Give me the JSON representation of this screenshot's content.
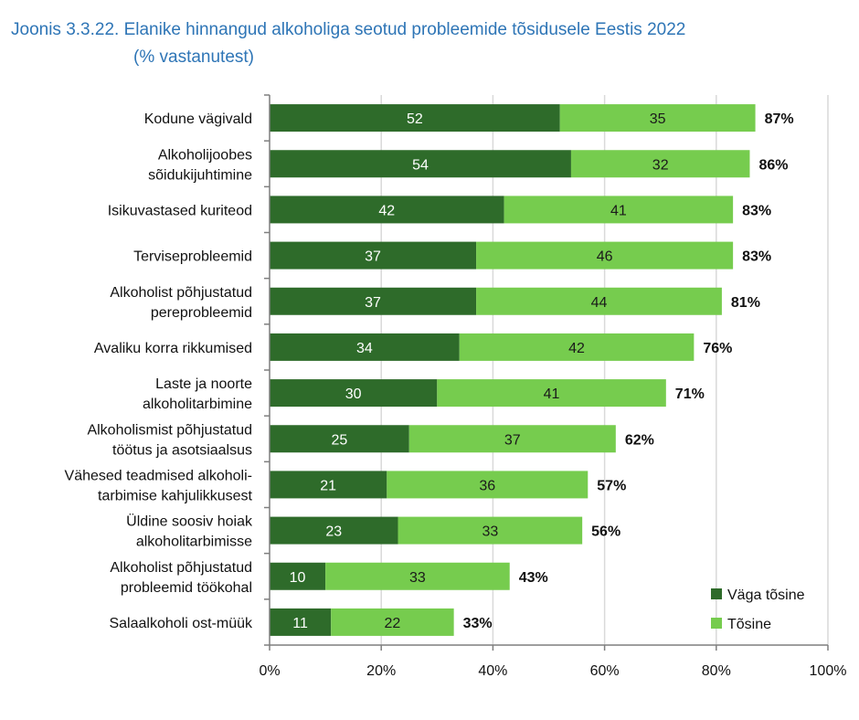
{
  "title": {
    "line1": "Joonis 3.3.22. Elanike hinnangud alkoholiga seotud probleemide tõsidusele Eestis 2022",
    "line2": "(% vastanutest)"
  },
  "colors": {
    "dark": "#2e6b2a",
    "light": "#76cc4e",
    "axis": "#7f7f7f",
    "title": "#2e75b6"
  },
  "chart_data": {
    "type": "bar",
    "orientation": "horizontal",
    "stacked": true,
    "categories": [
      [
        "Kodune vägivald"
      ],
      [
        "Alkoholijoobes",
        "sõidukijuhtimine"
      ],
      [
        "Isikuvastased kuriteod"
      ],
      [
        "Terviseprobleemid"
      ],
      [
        "Alkoholist põhjustatud",
        "pereprobleemid"
      ],
      [
        "Avaliku korra rikkumised"
      ],
      [
        "Laste ja noorte",
        "alkoholitarbimine"
      ],
      [
        "Alkoholismist põhjustatud",
        "töötus ja asotsiaalsus"
      ],
      [
        "Vähesed teadmised alkoholi-",
        "tarbimise kahjulikkusest"
      ],
      [
        "Üldine soosiv hoiak",
        "alkoholitarbimisse"
      ],
      [
        "Alkoholist põhjustatud",
        "probleemid töökohal"
      ],
      [
        "Salaalkoholi ost-müük"
      ]
    ],
    "series": [
      {
        "name": "Väga tõsine",
        "values": [
          52,
          54,
          42,
          37,
          37,
          34,
          30,
          25,
          21,
          23,
          10,
          11
        ]
      },
      {
        "name": "Tõsine",
        "values": [
          35,
          32,
          41,
          46,
          44,
          42,
          41,
          37,
          36,
          33,
          33,
          22
        ]
      }
    ],
    "totals": [
      "87%",
      "86%",
      "83%",
      "83%",
      "81%",
      "76%",
      "71%",
      "62%",
      "57%",
      "56%",
      "43%",
      "33%"
    ],
    "xticks": [
      "0%",
      "20%",
      "40%",
      "60%",
      "80%",
      "100%"
    ],
    "xlim": [
      0,
      100
    ],
    "legend_position": "bottom-right",
    "grid": true
  }
}
